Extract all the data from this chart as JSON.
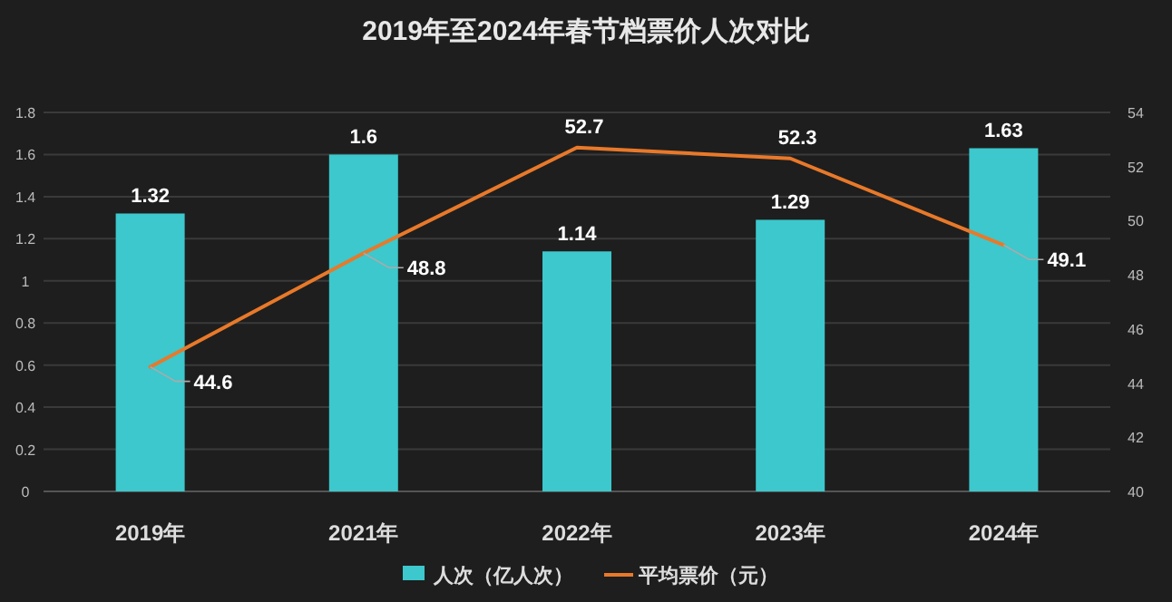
{
  "chart_data": {
    "type": "bar",
    "title": "2019年至2024年春节档票价人次对比",
    "categories": [
      "2019年",
      "2021年",
      "2022年",
      "2023年",
      "2024年"
    ],
    "series": [
      {
        "name": "人次（亿人次）",
        "color": "#3cc8cc",
        "values": [
          1.32,
          1.6,
          1.14,
          1.29,
          1.63
        ]
      },
      {
        "name": "平均票价（元）",
        "type": "line",
        "axis": "y2",
        "color": "#e8792a",
        "values": [
          44.6,
          48.8,
          52.7,
          52.3,
          49.1
        ]
      }
    ],
    "ylim": [
      0,
      1.8
    ],
    "yticks": [
      0,
      0.2,
      0.4,
      0.6,
      0.8,
      1,
      1.2,
      1.4,
      1.6,
      1.8
    ],
    "y2lim": [
      40,
      54
    ],
    "y2ticks": [
      40,
      42,
      44,
      46,
      48,
      50,
      52,
      54
    ],
    "grid": "y",
    "legend": "bottom",
    "data_labels": true
  }
}
